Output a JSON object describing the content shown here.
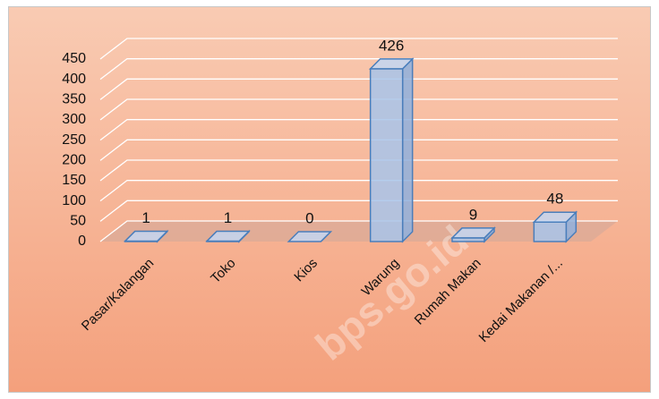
{
  "chart_data": {
    "type": "bar3d",
    "categories": [
      "Pasar/Kalangan",
      "Toko",
      "Kios",
      "Warung",
      "Rumah Makan",
      "Kedai Makanan /..."
    ],
    "values": [
      1,
      1,
      0,
      426,
      9,
      48
    ],
    "color": "#a8c4ea",
    "ylim": [
      0,
      450
    ],
    "yticks": [
      0,
      50,
      100,
      150,
      200,
      250,
      300,
      350,
      400,
      450
    ],
    "grid": true,
    "watermark": "bps.go.id"
  }
}
